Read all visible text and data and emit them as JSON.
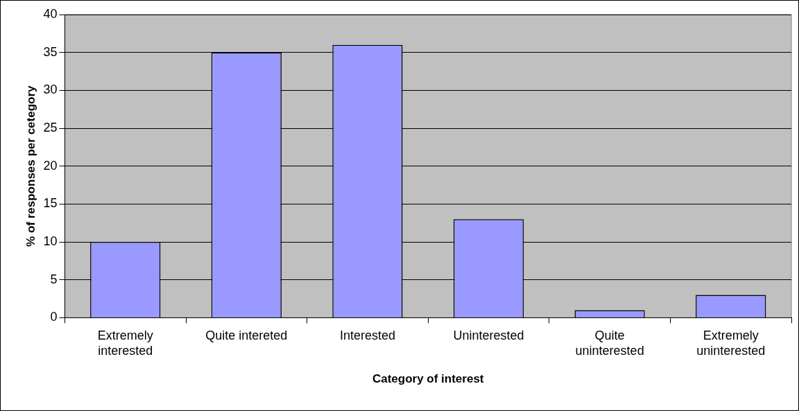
{
  "chart_data": {
    "type": "bar",
    "xlabel": "Category of interest",
    "ylabel": "% of responses per cetegory",
    "categories": [
      "Extremely interested",
      "Quite intereted",
      "Interested",
      "Uninterested",
      "Quite uninterested",
      "Extremely uninterested"
    ],
    "values": [
      10,
      35,
      36,
      13,
      1,
      3
    ],
    "color": "#9999ff",
    "ylim": [
      0,
      40
    ],
    "yticks": [
      0,
      5,
      10,
      15,
      20,
      25,
      30,
      35,
      40
    ],
    "grid": "y",
    "legend": false
  }
}
